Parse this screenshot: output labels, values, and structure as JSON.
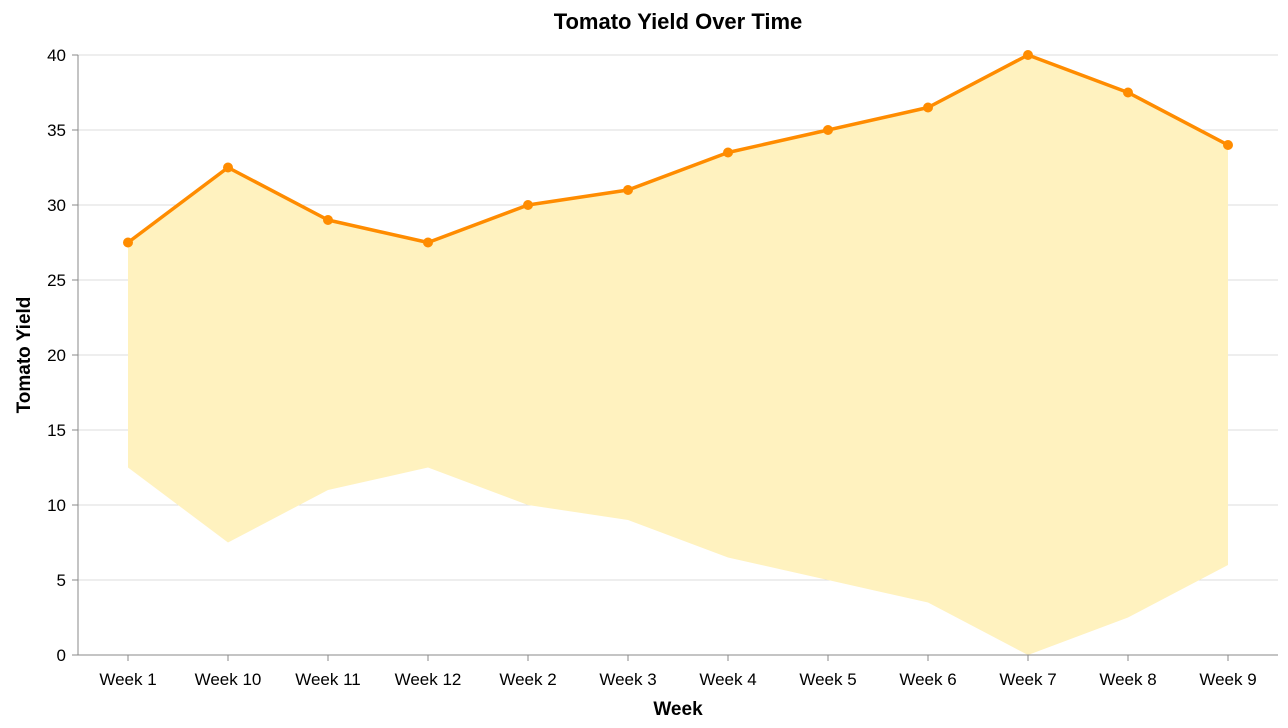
{
  "chart_data": {
    "type": "line",
    "title": "Tomato Yield Over Time",
    "xlabel": "Week",
    "ylabel": "Tomato Yield",
    "categories": [
      "Week 1",
      "Week 10",
      "Week 11",
      "Week 12",
      "Week 2",
      "Week 3",
      "Week 4",
      "Week 5",
      "Week 6",
      "Week 7",
      "Week 8",
      "Week 9"
    ],
    "series": [
      {
        "values": [
          27.5,
          32.5,
          29.0,
          27.5,
          30.0,
          31.0,
          33.5,
          35.0,
          36.5,
          40.0,
          37.5,
          34.0
        ],
        "color": "#ff8c00"
      }
    ],
    "band": {
      "lower": [
        12.5,
        7.5,
        11.0,
        12.5,
        10.0,
        9.0,
        6.5,
        5.0,
        3.5,
        0.0,
        2.5,
        6.0
      ],
      "upper": [
        27.5,
        32.5,
        29.0,
        27.5,
        30.0,
        31.0,
        33.5,
        35.0,
        36.5,
        40.0,
        37.5,
        34.0
      ],
      "color": "#fff2bf"
    },
    "ylim": [
      0,
      40
    ],
    "yticks": [
      0,
      5,
      10,
      15,
      20,
      25,
      30,
      35,
      40
    ],
    "grid": true,
    "legend": "none"
  }
}
